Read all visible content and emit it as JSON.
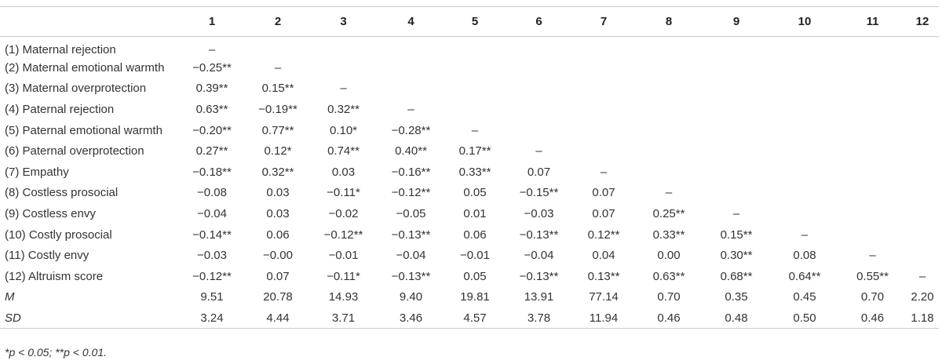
{
  "table": {
    "column_headers": [
      "",
      "1",
      "2",
      "3",
      "4",
      "5",
      "6",
      "7",
      "8",
      "9",
      "10",
      "11",
      "12"
    ],
    "rows": [
      {
        "label": "(1) Maternal rejection",
        "italic": false,
        "cells": [
          "–",
          "",
          "",
          "",
          "",
          "",
          "",
          "",
          "",
          "",
          "",
          ""
        ]
      },
      {
        "label": "(2) Maternal emotional warmth",
        "italic": false,
        "cells": [
          "−0.25**",
          "–",
          "",
          "",
          "",
          "",
          "",
          "",
          "",
          "",
          "",
          ""
        ]
      },
      {
        "label": "(3) Maternal overprotection",
        "italic": false,
        "cells": [
          "0.39**",
          "0.15**",
          "–",
          "",
          "",
          "",
          "",
          "",
          "",
          "",
          "",
          ""
        ]
      },
      {
        "label": "(4) Paternal rejection",
        "italic": false,
        "cells": [
          "0.63**",
          "−0.19**",
          "0.32**",
          "–",
          "",
          "",
          "",
          "",
          "",
          "",
          "",
          ""
        ]
      },
      {
        "label": "(5) Paternal emotional warmth",
        "italic": false,
        "cells": [
          "−0.20**",
          "0.77**",
          "0.10*",
          "−0.28**",
          "–",
          "",
          "",
          "",
          "",
          "",
          "",
          ""
        ]
      },
      {
        "label": "(6) Paternal overprotection",
        "italic": false,
        "cells": [
          "0.27**",
          "0.12*",
          "0.74**",
          "0.40**",
          "0.17**",
          "–",
          "",
          "",
          "",
          "",
          "",
          ""
        ]
      },
      {
        "label": "(7) Empathy",
        "italic": false,
        "cells": [
          "−0.18**",
          "0.32**",
          "0.03",
          "−0.16**",
          "0.33**",
          "0.07",
          "–",
          "",
          "",
          "",
          "",
          ""
        ]
      },
      {
        "label": "(8) Costless prosocial",
        "italic": false,
        "cells": [
          "−0.08",
          "0.03",
          "−0.11*",
          "−0.12**",
          "0.05",
          "−0.15**",
          "0.07",
          "–",
          "",
          "",
          "",
          ""
        ]
      },
      {
        "label": "(9) Costless envy",
        "italic": false,
        "cells": [
          "−0.04",
          "0.03",
          "−0.02",
          "−0.05",
          "0.01",
          "−0.03",
          "0.07",
          "0.25**",
          "–",
          "",
          "",
          ""
        ]
      },
      {
        "label": "(10) Costly prosocial",
        "italic": false,
        "cells": [
          "−0.14**",
          "0.06",
          "−0.12**",
          "−0.13**",
          "0.06",
          "−0.13**",
          "0.12**",
          "0.33**",
          "0.15**",
          "–",
          "",
          ""
        ]
      },
      {
        "label": "(11) Costly envy",
        "italic": false,
        "cells": [
          "−0.03",
          "−0.00",
          "−0.01",
          "−0.04",
          "−0.01",
          "−0.04",
          "0.04",
          "0.00",
          "0.30**",
          "0.08",
          "–",
          ""
        ]
      },
      {
        "label": "(12) Altruism score",
        "italic": false,
        "cells": [
          "−0.12**",
          "0.07",
          "−0.11*",
          "−0.13**",
          "0.05",
          "−0.13**",
          "0.13**",
          "0.63**",
          "0.68**",
          "0.64**",
          "0.55**",
          "–"
        ]
      },
      {
        "label": "M",
        "italic": true,
        "cells": [
          "9.51",
          "20.78",
          "14.93",
          "9.40",
          "19.81",
          "13.91",
          "77.14",
          "0.70",
          "0.35",
          "0.45",
          "0.70",
          "2.20"
        ]
      },
      {
        "label": "SD",
        "italic": true,
        "cells": [
          "3.24",
          "4.44",
          "3.71",
          "3.46",
          "4.57",
          "3.78",
          "11.94",
          "0.46",
          "0.48",
          "0.50",
          "0.46",
          "1.18"
        ]
      }
    ]
  },
  "note": "*p < 0.05; **p < 0.01."
}
